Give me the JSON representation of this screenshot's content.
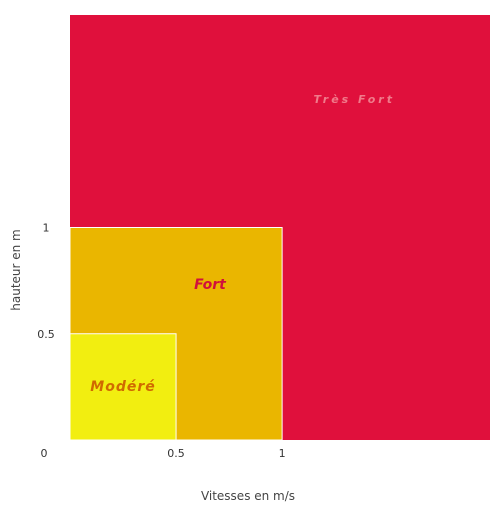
{
  "chart_data": {
    "type": "area",
    "xlabel": "Vitesses en m/s",
    "ylabel": "hauteur en m",
    "xlim": [
      0,
      1.98
    ],
    "ylim": [
      0,
      2.0
    ],
    "x_ticks": [
      {
        "value": 0,
        "label": "0"
      },
      {
        "value": 0.5,
        "label": "0.5"
      },
      {
        "value": 1,
        "label": "1"
      }
    ],
    "y_ticks": [
      {
        "value": 0.5,
        "label": "0.5"
      },
      {
        "value": 1,
        "label": "1"
      }
    ],
    "regions": [
      {
        "name": "Très Fort",
        "x": [
          0,
          1.98
        ],
        "y": [
          0,
          2.0
        ],
        "color": "#e0103c",
        "label_color": "#f07a8a"
      },
      {
        "name": "Fort",
        "x": [
          0,
          1
        ],
        "y": [
          0,
          1
        ],
        "color": "#eab600",
        "label_color": "#d0103c"
      },
      {
        "name": "Modéré",
        "x": [
          0,
          0.5
        ],
        "y": [
          0,
          0.5
        ],
        "color": "#f2ee10",
        "label_color": "#d06a00"
      }
    ]
  }
}
